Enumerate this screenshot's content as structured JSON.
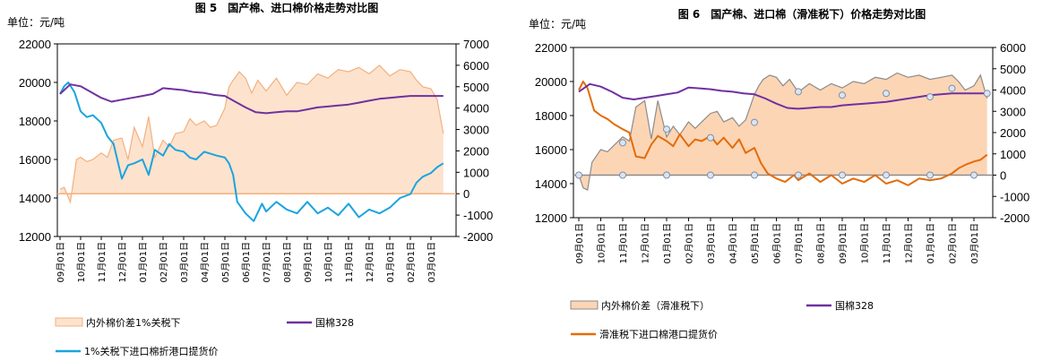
{
  "chart_data": [
    {
      "type": "line",
      "title": "图 5　国产棉、进口棉价格走势对比图",
      "unit_label": "单位：元/吨",
      "x_ticks": [
        "09月01日",
        "10月01日",
        "11月01日",
        "12月01日",
        "01月01日",
        "02月01日",
        "03月01日",
        "04月01日",
        "05月01日",
        "06月01日",
        "07月01日",
        "08月01日",
        "09月01日",
        "10月01日",
        "11月01日",
        "12月01日",
        "01月01日",
        "02月01日",
        "03月01日"
      ],
      "y_left": {
        "min": 12000,
        "max": 22000,
        "ticks": [
          "12000",
          "14000",
          "16000",
          "18000",
          "20000",
          "22000"
        ]
      },
      "y_right": {
        "min": -2000,
        "max": 7000,
        "ticks": [
          "-2000",
          "-1000",
          "0",
          "1000",
          "2000",
          "3000",
          "4000",
          "5000",
          "6000",
          "7000"
        ]
      },
      "series": [
        {
          "name": "内外棉价差1%关税下",
          "axis": "right",
          "kind": "area",
          "color": "#f3b07f",
          "fill": "#fde3cd",
          "x": [
            0,
            0.2,
            0.5,
            0.8,
            1,
            1.3,
            1.6,
            2,
            2.3,
            2.6,
            3,
            3.3,
            3.6,
            4,
            4.3,
            4.6,
            5,
            5.3,
            5.6,
            6,
            6.3,
            6.6,
            7,
            7.3,
            7.6,
            8,
            8.2,
            8.4,
            8.7,
            9,
            9.3,
            9.6,
            10,
            10.5,
            11,
            11.5,
            12,
            12.5,
            13,
            13.5,
            14,
            14.5,
            15,
            15.5,
            16,
            16.5,
            17,
            17.3,
            17.6,
            18,
            18.3,
            18.6
          ],
          "values": [
            200,
            300,
            -400,
            1600,
            1700,
            1500,
            1600,
            1900,
            1700,
            2500,
            2600,
            1600,
            3100,
            2200,
            3600,
            1700,
            2500,
            2200,
            2800,
            2900,
            3500,
            3200,
            3400,
            3100,
            3200,
            4000,
            5000,
            5300,
            5700,
            5400,
            4700,
            5300,
            4800,
            5400,
            4600,
            5200,
            5100,
            5600,
            5400,
            5800,
            5700,
            5900,
            5600,
            6000,
            5500,
            5800,
            5700,
            5300,
            5000,
            4900,
            4400,
            2800
          ]
        },
        {
          "name": "1%关税下进口棉折港口提货价",
          "axis": "left",
          "kind": "line",
          "color": "#1ba4df",
          "x": [
            0,
            0.2,
            0.4,
            0.7,
            1,
            1.3,
            1.6,
            2,
            2.3,
            2.6,
            3,
            3.3,
            3.6,
            4,
            4.3,
            4.6,
            5,
            5.3,
            5.6,
            6,
            6.3,
            6.6,
            7,
            7.3,
            7.6,
            8,
            8.2,
            8.4,
            8.6,
            9,
            9.4,
            9.8,
            10,
            10.5,
            11,
            11.5,
            12,
            12.5,
            13,
            13.5,
            14,
            14.5,
            15,
            15.5,
            16,
            16.5,
            17,
            17.3,
            17.6,
            18,
            18.3,
            18.6
          ],
          "values": [
            19400,
            19800,
            20000,
            19500,
            18500,
            18200,
            18300,
            17900,
            17200,
            16800,
            15000,
            15700,
            15800,
            16000,
            15200,
            16500,
            16200,
            16800,
            16500,
            16400,
            16100,
            16000,
            16400,
            16300,
            16200,
            16100,
            15800,
            15200,
            13800,
            13200,
            12800,
            13700,
            13300,
            13800,
            13400,
            13200,
            13800,
            13200,
            13500,
            13100,
            13700,
            13000,
            13400,
            13200,
            13500,
            14000,
            14200,
            14800,
            15100,
            15300,
            15600,
            15800
          ]
        },
        {
          "name": "国棉328",
          "axis": "left",
          "kind": "line",
          "color": "#7030a0",
          "x": [
            0,
            0.5,
            1,
            1.5,
            2,
            2.5,
            3,
            3.5,
            4,
            4.5,
            5,
            5.5,
            6,
            6.5,
            7,
            7.5,
            8,
            8.5,
            9,
            9.5,
            10,
            10.5,
            11,
            11.5,
            12,
            12.5,
            13,
            13.5,
            14,
            14.5,
            15,
            15.5,
            16,
            16.5,
            17,
            17.5,
            18,
            18.6
          ],
          "values": [
            19400,
            19900,
            19800,
            19500,
            19200,
            19000,
            19100,
            19200,
            19300,
            19400,
            19700,
            19650,
            19600,
            19500,
            19450,
            19350,
            19300,
            19000,
            18700,
            18450,
            18400,
            18450,
            18500,
            18500,
            18600,
            18700,
            18750,
            18800,
            18850,
            18950,
            19050,
            19150,
            19200,
            19250,
            19300,
            19300,
            19300,
            19300
          ]
        }
      ],
      "legend": [
        "内外棉价差1%关税下",
        "国棉328",
        "1%关税下进口棉折港口提货价"
      ]
    },
    {
      "type": "line",
      "title": "图 6　国产棉、进口棉（滑准税下）价格走势对比图",
      "unit_label": "单位：元/吨",
      "x_ticks": [
        "09月01日",
        "10月01日",
        "11月01日",
        "12月01日",
        "01月01日",
        "02月01日",
        "03月01日",
        "04月01日",
        "05月01日",
        "06月01日",
        "07月01日",
        "08月01日",
        "09月01日",
        "10月01日",
        "11月01日",
        "12月01日",
        "01月01日",
        "02月01日",
        "03月01日"
      ],
      "y_left": {
        "min": 12000,
        "max": 22000,
        "ticks": [
          "12000",
          "14000",
          "16000",
          "18000",
          "20000",
          "22000"
        ]
      },
      "y_right": {
        "min": -2000,
        "max": 6000,
        "ticks": [
          "-2000",
          "-1000",
          "0",
          "1000",
          "2000",
          "3000",
          "4000",
          "5000",
          "6000"
        ]
      },
      "series": [
        {
          "name": "内外棉价差（滑准税下）",
          "axis": "right",
          "kind": "area",
          "color": "#8c8c8c",
          "fill": "#fcd5b5",
          "x": [
            0,
            0.2,
            0.4,
            0.6,
            1,
            1.3,
            1.6,
            2,
            2.3,
            2.6,
            3,
            3.3,
            3.6,
            4,
            4.3,
            4.6,
            5,
            5.3,
            5.6,
            6,
            6.3,
            6.6,
            7,
            7.3,
            7.6,
            8,
            8.2,
            8.4,
            8.7,
            9,
            9.3,
            9.6,
            10,
            10.5,
            11,
            11.5,
            12,
            12.5,
            13,
            13.5,
            14,
            14.5,
            15,
            15.5,
            16,
            16.5,
            17,
            17.3,
            17.6,
            18,
            18.3,
            18.6
          ],
          "values": [
            0,
            -600,
            -700,
            600,
            1200,
            1100,
            1400,
            1800,
            1600,
            3200,
            3500,
            1700,
            3500,
            1800,
            2300,
            1900,
            2500,
            2200,
            2500,
            2900,
            3000,
            2500,
            2700,
            2300,
            2600,
            3800,
            4200,
            4500,
            4700,
            4600,
            4200,
            4500,
            3900,
            4300,
            4000,
            4300,
            4100,
            4400,
            4300,
            4600,
            4500,
            4800,
            4600,
            4700,
            4500,
            4600,
            4700,
            4400,
            4000,
            4200,
            4700,
            3600
          ]
        },
        {
          "name": "滑准税下进口棉港口提货价",
          "axis": "left",
          "kind": "line",
          "color": "#e36c09",
          "x": [
            0,
            0.2,
            0.4,
            0.7,
            1,
            1.3,
            1.6,
            2,
            2.3,
            2.6,
            3,
            3.3,
            3.6,
            4,
            4.3,
            4.6,
            5,
            5.3,
            5.6,
            6,
            6.3,
            6.6,
            7,
            7.3,
            7.6,
            8,
            8.3,
            8.6,
            9,
            9.4,
            9.8,
            10,
            10.5,
            11,
            11.5,
            12,
            12.5,
            13,
            13.5,
            14,
            14.5,
            15,
            15.5,
            16,
            16.5,
            17,
            17.3,
            17.6,
            18,
            18.3,
            18.6
          ],
          "values": [
            19500,
            20000,
            19600,
            18300,
            18000,
            17800,
            17500,
            17200,
            17000,
            15600,
            15500,
            16300,
            16800,
            16500,
            16200,
            16900,
            16200,
            16600,
            16500,
            16800,
            16300,
            16700,
            16100,
            16600,
            15800,
            16100,
            15200,
            14600,
            14300,
            14100,
            14500,
            14200,
            14600,
            14100,
            14500,
            14000,
            14300,
            14100,
            14500,
            14000,
            14200,
            13900,
            14300,
            14200,
            14300,
            14600,
            14900,
            15100,
            15300,
            15400,
            15700
          ]
        },
        {
          "name": "国棉328",
          "axis": "left",
          "kind": "line",
          "color": "#7030a0",
          "x": [
            0,
            0.5,
            1,
            1.5,
            2,
            2.5,
            3,
            3.5,
            4,
            4.5,
            5,
            5.5,
            6,
            6.5,
            7,
            7.5,
            8,
            8.5,
            9,
            9.5,
            10,
            10.5,
            11,
            11.5,
            12,
            12.5,
            13,
            13.5,
            14,
            14.5,
            15,
            15.5,
            16,
            16.5,
            17,
            17.5,
            18,
            18.6
          ],
          "values": [
            19400,
            19850,
            19700,
            19400,
            19050,
            18950,
            19050,
            19150,
            19250,
            19350,
            19650,
            19600,
            19550,
            19450,
            19400,
            19300,
            19250,
            19000,
            18700,
            18450,
            18400,
            18450,
            18500,
            18500,
            18600,
            18650,
            18700,
            18750,
            18800,
            18900,
            19000,
            19100,
            19200,
            19250,
            19300,
            19300,
            19300,
            19300
          ]
        }
      ],
      "markers_right": {
        "x": [
          0,
          2,
          4,
          6,
          8,
          10,
          12,
          14,
          16,
          18
        ],
        "values": [
          0,
          0,
          0,
          0,
          0,
          0,
          0,
          0,
          0,
          0
        ]
      },
      "markers_left": {
        "x": [
          2,
          4,
          6,
          8,
          10,
          12,
          14,
          16,
          17,
          18.6
        ],
        "values": [
          16400,
          17200,
          16700,
          17600,
          19400,
          19200,
          19300,
          19100,
          19600,
          19300
        ]
      },
      "legend": [
        "内外棉价差（滑准税下）",
        "国棉328",
        "滑准税下进口棉港口提货价"
      ]
    }
  ]
}
